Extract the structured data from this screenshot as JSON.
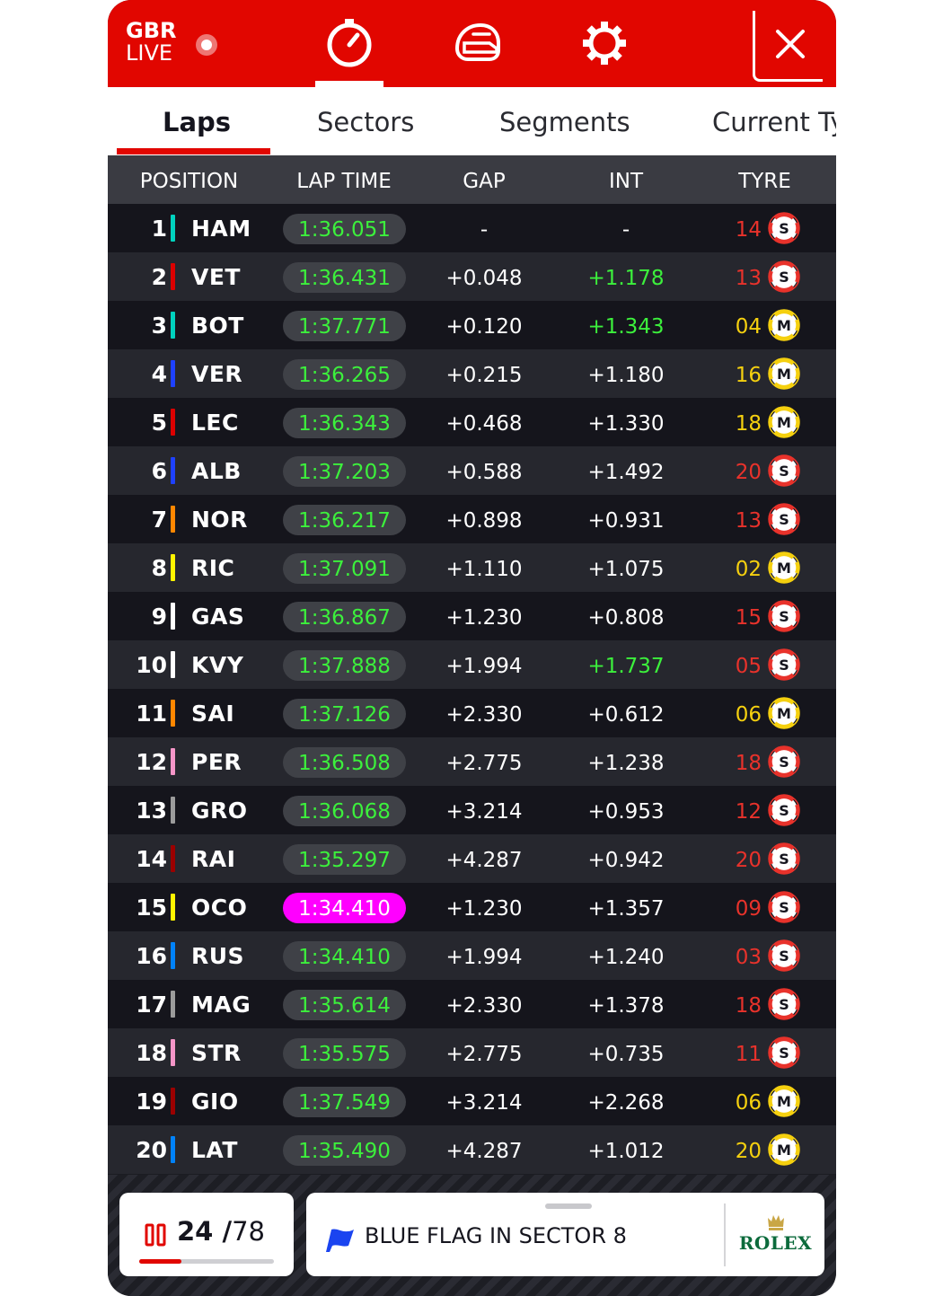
{
  "header": {
    "brand_line1": "GBR",
    "brand_line2": "LIVE",
    "nav_icons": [
      "stopwatch-icon",
      "helmet-icon",
      "settings-icon"
    ],
    "active_nav": "stopwatch-icon",
    "close_icon": "close-icon"
  },
  "tabs": [
    {
      "label": "Laps",
      "active": true
    },
    {
      "label": "Sectors",
      "active": false
    },
    {
      "label": "Segments",
      "active": false
    },
    {
      "label": "Current Tyres",
      "active": false
    }
  ],
  "columns": {
    "position": "POSITION",
    "lap_time": "LAP TIME",
    "gap": "GAP",
    "int": "INT",
    "tyre": "TYRE"
  },
  "colors": {
    "brand_red": "#e10600",
    "soft_tyre": "#e8322b",
    "medium_tyre": "#f5d00f",
    "lap_green": "#3cf03c",
    "fastest_purple": "#ff00ff"
  },
  "drivers": [
    {
      "pos": "1",
      "code": "HAM",
      "team_color": "#00d2be",
      "lap": "1:36.051",
      "fastest": false,
      "gap": "-",
      "int": "-",
      "int_green": false,
      "tyre_age": "14",
      "compound": "S"
    },
    {
      "pos": "2",
      "code": "VET",
      "team_color": "#dc0000",
      "lap": "1:36.431",
      "fastest": false,
      "gap": "+0.048",
      "int": "+1.178",
      "int_green": true,
      "tyre_age": "13",
      "compound": "S"
    },
    {
      "pos": "3",
      "code": "BOT",
      "team_color": "#00d2be",
      "lap": "1:37.771",
      "fastest": false,
      "gap": "+0.120",
      "int": "+1.343",
      "int_green": true,
      "tyre_age": "04",
      "compound": "M"
    },
    {
      "pos": "4",
      "code": "VER",
      "team_color": "#1e41ff",
      "lap": "1:36.265",
      "fastest": false,
      "gap": "+0.215",
      "int": "+1.180",
      "int_green": false,
      "tyre_age": "16",
      "compound": "M"
    },
    {
      "pos": "5",
      "code": "LEC",
      "team_color": "#dc0000",
      "lap": "1:36.343",
      "fastest": false,
      "gap": "+0.468",
      "int": "+1.330",
      "int_green": false,
      "tyre_age": "18",
      "compound": "M"
    },
    {
      "pos": "6",
      "code": "ALB",
      "team_color": "#1e41ff",
      "lap": "1:37.203",
      "fastest": false,
      "gap": "+0.588",
      "int": "+1.492",
      "int_green": false,
      "tyre_age": "20",
      "compound": "S"
    },
    {
      "pos": "7",
      "code": "NOR",
      "team_color": "#ff8700",
      "lap": "1:36.217",
      "fastest": false,
      "gap": "+0.898",
      "int": "+0.931",
      "int_green": false,
      "tyre_age": "13",
      "compound": "S"
    },
    {
      "pos": "8",
      "code": "RIC",
      "team_color": "#fff500",
      "lap": "1:37.091",
      "fastest": false,
      "gap": "+1.110",
      "int": "+1.075",
      "int_green": false,
      "tyre_age": "02",
      "compound": "M"
    },
    {
      "pos": "9",
      "code": "GAS",
      "team_color": "#ffffff",
      "lap": "1:36.867",
      "fastest": false,
      "gap": "+1.230",
      "int": "+0.808",
      "int_green": false,
      "tyre_age": "15",
      "compound": "S"
    },
    {
      "pos": "10",
      "code": "KVY",
      "team_color": "#ffffff",
      "lap": "1:37.888",
      "fastest": false,
      "gap": "+1.994",
      "int": "+1.737",
      "int_green": true,
      "tyre_age": "05",
      "compound": "S"
    },
    {
      "pos": "11",
      "code": "SAI",
      "team_color": "#ff8700",
      "lap": "1:37.126",
      "fastest": false,
      "gap": "+2.330",
      "int": "+0.612",
      "int_green": false,
      "tyre_age": "06",
      "compound": "M"
    },
    {
      "pos": "12",
      "code": "PER",
      "team_color": "#f596c8",
      "lap": "1:36.508",
      "fastest": false,
      "gap": "+2.775",
      "int": "+1.238",
      "int_green": false,
      "tyre_age": "18",
      "compound": "S"
    },
    {
      "pos": "13",
      "code": "GRO",
      "team_color": "#9b9b9b",
      "lap": "1:36.068",
      "fastest": false,
      "gap": "+3.214",
      "int": "+0.953",
      "int_green": false,
      "tyre_age": "12",
      "compound": "S"
    },
    {
      "pos": "14",
      "code": "RAI",
      "team_color": "#9b0000",
      "lap": "1:35.297",
      "fastest": false,
      "gap": "+4.287",
      "int": "+0.942",
      "int_green": false,
      "tyre_age": "20",
      "compound": "S"
    },
    {
      "pos": "15",
      "code": "OCO",
      "team_color": "#fff500",
      "lap": "1:34.410",
      "fastest": true,
      "gap": "+1.230",
      "int": "+1.357",
      "int_green": false,
      "tyre_age": "09",
      "compound": "S"
    },
    {
      "pos": "16",
      "code": "RUS",
      "team_color": "#0082fa",
      "lap": "1:34.410",
      "fastest": false,
      "gap": "+1.994",
      "int": "+1.240",
      "int_green": false,
      "tyre_age": "03",
      "compound": "S"
    },
    {
      "pos": "17",
      "code": "MAG",
      "team_color": "#9b9b9b",
      "lap": "1:35.614",
      "fastest": false,
      "gap": "+2.330",
      "int": "+1.378",
      "int_green": false,
      "tyre_age": "18",
      "compound": "S"
    },
    {
      "pos": "18",
      "code": "STR",
      "team_color": "#f596c8",
      "lap": "1:35.575",
      "fastest": false,
      "gap": "+2.775",
      "int": "+0.735",
      "int_green": false,
      "tyre_age": "11",
      "compound": "S"
    },
    {
      "pos": "19",
      "code": "GIO",
      "team_color": "#9b0000",
      "lap": "1:37.549",
      "fastest": false,
      "gap": "+3.214",
      "int": "+2.268",
      "int_green": false,
      "tyre_age": "06",
      "compound": "M"
    },
    {
      "pos": "20",
      "code": "LAT",
      "team_color": "#0082fa",
      "lap": "1:35.490",
      "fastest": false,
      "gap": "+4.287",
      "int": "+1.012",
      "int_green": false,
      "tyre_age": "20",
      "compound": "M"
    }
  ],
  "lap_counter": {
    "current": "24",
    "separator": "/",
    "total": "78",
    "progress": 0.31,
    "icon": "lap-count-icon"
  },
  "message": {
    "text": "BLUE FLAG IN SECTOR 8",
    "icon": "blue-flag-icon",
    "flag_color": "#1a44f0"
  },
  "sponsor": {
    "name": "ROLEX",
    "icon": "rolex-crown-icon"
  }
}
